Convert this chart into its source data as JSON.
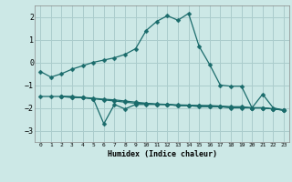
{
  "xlabel": "Humidex (Indice chaleur)",
  "bg_color": "#cce8e6",
  "grid_color": "#aacccc",
  "line_color": "#1a6b6b",
  "xlim": [
    -0.5,
    23.5
  ],
  "ylim": [
    -3.5,
    2.5
  ],
  "yticks": [
    -3,
    -2,
    -1,
    0,
    1,
    2
  ],
  "xticks": [
    0,
    1,
    2,
    3,
    4,
    5,
    6,
    7,
    8,
    9,
    10,
    11,
    12,
    13,
    14,
    15,
    16,
    17,
    18,
    19,
    20,
    21,
    22,
    23
  ],
  "main_line": {
    "x": [
      0,
      1,
      2,
      3,
      4,
      5,
      6,
      7,
      8,
      9,
      10,
      11,
      12,
      13,
      14,
      15,
      16,
      17,
      18,
      19,
      20,
      21,
      22,
      23
    ],
    "y": [
      -0.4,
      -0.65,
      -0.5,
      -0.3,
      -0.15,
      0.0,
      0.1,
      0.2,
      0.35,
      0.6,
      1.4,
      1.8,
      2.05,
      1.85,
      2.15,
      0.7,
      -0.1,
      -1.0,
      -1.05,
      -1.05,
      -2.0,
      -1.4,
      -2.0,
      -2.1
    ]
  },
  "line2": {
    "x": [
      0,
      1,
      2,
      3,
      4,
      5,
      6,
      7,
      8,
      9,
      10,
      11,
      12,
      13,
      14,
      15,
      16,
      17,
      18,
      19,
      20,
      21,
      22,
      23
    ],
    "y": [
      -1.5,
      -1.5,
      -1.5,
      -1.55,
      -1.55,
      -1.6,
      -1.65,
      -1.7,
      -1.75,
      -1.8,
      -1.8,
      -1.85,
      -1.85,
      -1.9,
      -1.9,
      -1.9,
      -1.9,
      -1.92,
      -1.95,
      -1.95,
      -2.0,
      -2.0,
      -2.05,
      -2.1
    ]
  },
  "line3": {
    "x": [
      2,
      3,
      4,
      5,
      6,
      7,
      8,
      9,
      10,
      11,
      12,
      13,
      14,
      15,
      16,
      17,
      18,
      19,
      20,
      21,
      22,
      23
    ],
    "y": [
      -1.5,
      -1.5,
      -1.55,
      -1.6,
      -2.7,
      -1.85,
      -2.05,
      -1.85,
      -1.85,
      -1.85,
      -1.85,
      -1.9,
      -1.9,
      -1.95,
      -1.95,
      -1.95,
      -2.0,
      -2.0,
      -2.0,
      -2.0,
      -2.05,
      -2.1
    ]
  },
  "line4": {
    "x": [
      2,
      3,
      4,
      5,
      6,
      7,
      8,
      9,
      10,
      11,
      12,
      13,
      14,
      15,
      16,
      17,
      18,
      19,
      20,
      21,
      22,
      23
    ],
    "y": [
      -1.5,
      -1.52,
      -1.54,
      -1.58,
      -1.62,
      -1.65,
      -1.7,
      -1.75,
      -1.8,
      -1.83,
      -1.85,
      -1.87,
      -1.88,
      -1.9,
      -1.92,
      -1.95,
      -1.97,
      -1.98,
      -2.0,
      -2.0,
      -2.05,
      -2.1
    ]
  }
}
